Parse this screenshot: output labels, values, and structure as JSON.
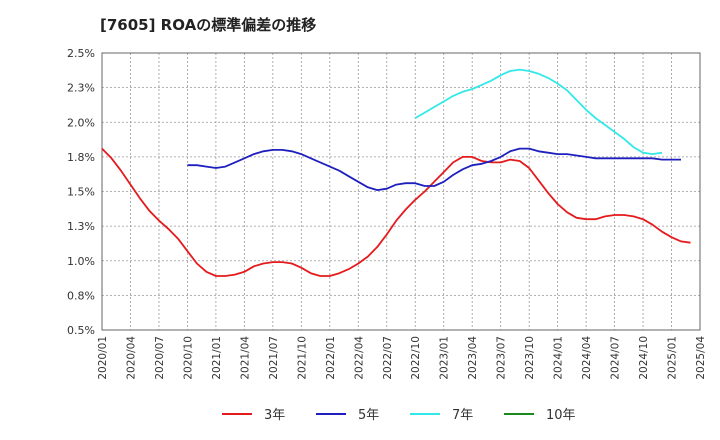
{
  "title": "[7605]  ROAの標準偏差の推移",
  "chart_data": {
    "type": "line",
    "title": "[7605]  ROAの標準偏差の推移",
    "xlabel": "",
    "ylabel": "",
    "x_ticks": [
      "2020/01",
      "2020/04",
      "2020/07",
      "2020/10",
      "2021/01",
      "2021/04",
      "2021/07",
      "2021/10",
      "2022/01",
      "2022/04",
      "2022/07",
      "2022/10",
      "2023/01",
      "2023/04",
      "2023/07",
      "2023/10",
      "2024/01",
      "2024/04",
      "2024/07",
      "2024/10",
      "2025/01",
      "2025/04"
    ],
    "y_ticks": [
      "0.5%",
      "0.8%",
      "1.0%",
      "1.3%",
      "1.5%",
      "1.8%",
      "2.0%",
      "2.3%",
      "2.5%"
    ],
    "ylim": [
      0.5,
      2.5
    ],
    "grid": true,
    "legend_position": "bottom",
    "series": [
      {
        "name": "3年",
        "color": "#e41a1c",
        "start": "2020/01",
        "values": [
          1.81,
          1.74,
          1.65,
          1.55,
          1.45,
          1.36,
          1.29,
          1.23,
          1.16,
          1.07,
          0.98,
          0.92,
          0.89,
          0.89,
          0.9,
          0.92,
          0.96,
          0.98,
          0.99,
          0.99,
          0.98,
          0.95,
          0.91,
          0.89,
          0.89,
          0.91,
          0.94,
          0.98,
          1.03,
          1.1,
          1.19,
          1.29,
          1.37,
          1.44,
          1.5,
          1.57,
          1.64,
          1.71,
          1.75,
          1.75,
          1.72,
          1.71,
          1.71,
          1.73,
          1.72,
          1.67,
          1.58,
          1.49,
          1.41,
          1.35,
          1.31,
          1.3,
          1.3,
          1.32,
          1.33,
          1.33,
          1.32,
          1.3,
          1.26,
          1.21,
          1.17,
          1.14,
          1.13
        ]
      },
      {
        "name": "5年",
        "color": "#1f1fbf",
        "start": "2020/10",
        "values": [
          1.69,
          1.69,
          1.68,
          1.67,
          1.68,
          1.71,
          1.74,
          1.77,
          1.79,
          1.8,
          1.8,
          1.79,
          1.77,
          1.74,
          1.71,
          1.68,
          1.65,
          1.61,
          1.57,
          1.53,
          1.51,
          1.52,
          1.55,
          1.56,
          1.56,
          1.54,
          1.54,
          1.57,
          1.62,
          1.66,
          1.69,
          1.7,
          1.72,
          1.75,
          1.79,
          1.81,
          1.81,
          1.79,
          1.78,
          1.77,
          1.77,
          1.76,
          1.75,
          1.74,
          1.74,
          1.74,
          1.74,
          1.74,
          1.74,
          1.74,
          1.73,
          1.73,
          1.73
        ]
      },
      {
        "name": "7年",
        "color": "#33e8e8",
        "start": "2022/10",
        "values": [
          2.03,
          2.07,
          2.11,
          2.15,
          2.19,
          2.22,
          2.24,
          2.27,
          2.3,
          2.34,
          2.37,
          2.38,
          2.37,
          2.35,
          2.32,
          2.28,
          2.23,
          2.16,
          2.09,
          2.03,
          1.98,
          1.93,
          1.88,
          1.82,
          1.78,
          1.77,
          1.78
        ]
      },
      {
        "name": "10年",
        "color": "#1a8a1a",
        "start": "2025/01",
        "values": []
      }
    ]
  }
}
